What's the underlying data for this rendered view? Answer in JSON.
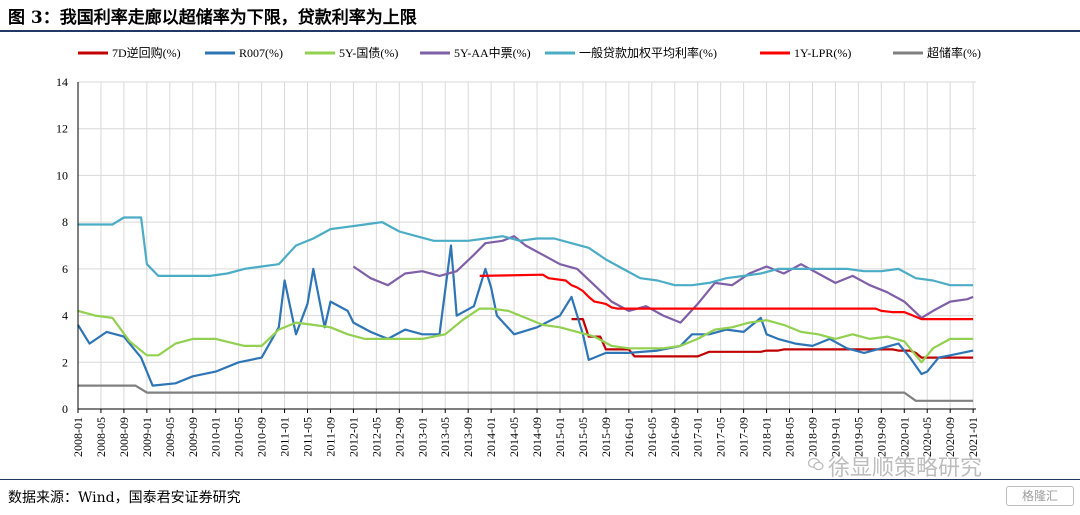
{
  "header": {
    "title": "图 3：我国利率走廊以超储率为下限，贷款利率为上限"
  },
  "footer": {
    "source": "数据来源：Wind，国泰君安证券研究"
  },
  "watermark": {
    "text": "徐显顺策略研究",
    "badge": "格隆汇"
  },
  "chart_data": {
    "type": "line",
    "title": "",
    "xlabel": "",
    "ylabel": "",
    "ylim": [
      0,
      14
    ],
    "yticks": [
      "0",
      "2",
      "4",
      "6",
      "8",
      "10",
      "12",
      "14"
    ],
    "xlim": [
      "2008-01",
      "2021-01"
    ],
    "xticks": [
      "2008-01",
      "2008-05",
      "2008-09",
      "2009-01",
      "2009-05",
      "2009-09",
      "2010-01",
      "2010-05",
      "2010-09",
      "2011-01",
      "2011-05",
      "2011-09",
      "2012-01",
      "2012-05",
      "2012-09",
      "2013-01",
      "2013-05",
      "2013-09",
      "2014-01",
      "2014-05",
      "2014-09",
      "2015-01",
      "2015-05",
      "2015-09",
      "2016-01",
      "2016-05",
      "2016-09",
      "2017-01",
      "2017-05",
      "2017-09",
      "2018-01",
      "2018-05",
      "2018-09",
      "2019-01",
      "2019-05",
      "2019-09",
      "2020-01",
      "2020-05",
      "2020-09",
      "2021-01"
    ],
    "grid": true,
    "legend_position": "top",
    "series": [
      {
        "name": "7D逆回购(%)",
        "color": "#c00000",
        "x": [
          "2008-01",
          "2015-02",
          "2015-03",
          "2015-05",
          "2015-06",
          "2015-08",
          "2015-09",
          "2016-01",
          "2016-02",
          "2017-01",
          "2017-02",
          "2017-03",
          "2017-04",
          "2017-12",
          "2018-01",
          "2018-03",
          "2018-04",
          "2019-11",
          "2019-12",
          "2020-02",
          "2020-03",
          "2020-04",
          "2020-05",
          "2021-01"
        ],
        "values": [
          null,
          null,
          3.85,
          3.85,
          3.1,
          3.1,
          2.55,
          2.55,
          2.25,
          2.25,
          2.35,
          2.45,
          2.45,
          2.45,
          2.5,
          2.5,
          2.55,
          2.55,
          2.5,
          2.5,
          2.4,
          2.2,
          2.2,
          2.2
        ]
      },
      {
        "name": "R007(%)",
        "color": "#2e75b6",
        "x": [
          "2008-01",
          "2008-03",
          "2008-06",
          "2008-09",
          "2008-12",
          "2009-02",
          "2009-06",
          "2009-09",
          "2010-01",
          "2010-05",
          "2010-09",
          "2010-12",
          "2011-01",
          "2011-03",
          "2011-05",
          "2011-06",
          "2011-08",
          "2011-09",
          "2011-12",
          "2012-01",
          "2012-04",
          "2012-07",
          "2012-10",
          "2013-01",
          "2013-04",
          "2013-06",
          "2013-07",
          "2013-10",
          "2013-12",
          "2014-01",
          "2014-02",
          "2014-05",
          "2014-09",
          "2015-01",
          "2015-03",
          "2015-05",
          "2015-06",
          "2015-09",
          "2016-01",
          "2016-06",
          "2016-10",
          "2016-12",
          "2017-03",
          "2017-06",
          "2017-09",
          "2017-12",
          "2018-01",
          "2018-03",
          "2018-06",
          "2018-09",
          "2018-12",
          "2019-03",
          "2019-06",
          "2019-09",
          "2019-12",
          "2020-02",
          "2020-04",
          "2020-05",
          "2020-07",
          "2020-09",
          "2020-11",
          "2021-01"
        ],
        "values": [
          3.6,
          2.8,
          3.3,
          3.1,
          2.2,
          1.0,
          1.1,
          1.4,
          1.6,
          2.0,
          2.2,
          3.5,
          5.5,
          3.2,
          4.5,
          6.0,
          3.5,
          4.6,
          4.2,
          3.7,
          3.3,
          3.0,
          3.4,
          3.2,
          3.2,
          7.0,
          4.0,
          4.4,
          6.0,
          5.2,
          4.0,
          3.2,
          3.5,
          4.0,
          4.8,
          3.2,
          2.1,
          2.4,
          2.4,
          2.5,
          2.7,
          3.2,
          3.2,
          3.4,
          3.3,
          3.9,
          3.2,
          3.0,
          2.8,
          2.7,
          3.0,
          2.6,
          2.4,
          2.6,
          2.8,
          2.2,
          1.5,
          1.6,
          2.2,
          2.3,
          2.4,
          2.5
        ]
      },
      {
        "name": "5Y-国债(%)",
        "color": "#92d050",
        "x": [
          "2008-01",
          "2008-04",
          "2008-07",
          "2008-10",
          "2009-01",
          "2009-03",
          "2009-06",
          "2009-09",
          "2010-01",
          "2010-06",
          "2010-09",
          "2010-12",
          "2011-03",
          "2011-06",
          "2011-09",
          "2011-12",
          "2012-03",
          "2012-06",
          "2012-09",
          "2013-01",
          "2013-05",
          "2013-08",
          "2013-11",
          "2014-01",
          "2014-04",
          "2014-07",
          "2014-10",
          "2015-01",
          "2015-04",
          "2015-07",
          "2015-10",
          "2016-01",
          "2016-04",
          "2016-07",
          "2016-10",
          "2017-01",
          "2017-04",
          "2017-07",
          "2017-10",
          "2018-01",
          "2018-04",
          "2018-07",
          "2018-10",
          "2019-01",
          "2019-04",
          "2019-07",
          "2019-10",
          "2020-01",
          "2020-04",
          "2020-06",
          "2020-09",
          "2020-12",
          "2021-01"
        ],
        "values": [
          4.2,
          4.0,
          3.9,
          2.9,
          2.3,
          2.3,
          2.8,
          3.0,
          3.0,
          2.7,
          2.7,
          3.4,
          3.7,
          3.6,
          3.5,
          3.2,
          3.0,
          3.0,
          3.0,
          3.0,
          3.2,
          3.8,
          4.3,
          4.3,
          4.2,
          3.9,
          3.6,
          3.5,
          3.3,
          3.1,
          2.7,
          2.6,
          2.6,
          2.6,
          2.7,
          3.0,
          3.4,
          3.5,
          3.7,
          3.8,
          3.6,
          3.3,
          3.2,
          3.0,
          3.2,
          3.0,
          3.1,
          2.9,
          2.0,
          2.6,
          3.0,
          3.0,
          3.0
        ]
      },
      {
        "name": "5Y-AA中票(%)",
        "color": "#7f5fa8",
        "x": [
          "2012-01",
          "2012-04",
          "2012-07",
          "2012-10",
          "2013-01",
          "2013-04",
          "2013-07",
          "2013-10",
          "2013-12",
          "2014-03",
          "2014-05",
          "2014-07",
          "2014-10",
          "2015-01",
          "2015-04",
          "2015-07",
          "2015-10",
          "2016-01",
          "2016-04",
          "2016-07",
          "2016-10",
          "2017-01",
          "2017-04",
          "2017-07",
          "2017-10",
          "2018-01",
          "2018-04",
          "2018-07",
          "2018-10",
          "2019-01",
          "2019-04",
          "2019-07",
          "2019-10",
          "2020-01",
          "2020-04",
          "2020-06",
          "2020-09",
          "2020-12",
          "2021-01"
        ],
        "values": [
          6.1,
          5.6,
          5.3,
          5.8,
          5.9,
          5.7,
          5.9,
          6.6,
          7.1,
          7.2,
          7.4,
          7.0,
          6.6,
          6.2,
          6.0,
          5.3,
          4.6,
          4.2,
          4.4,
          4.0,
          3.7,
          4.5,
          5.4,
          5.3,
          5.8,
          6.1,
          5.8,
          6.2,
          5.8,
          5.4,
          5.7,
          5.3,
          5.0,
          4.6,
          3.9,
          4.2,
          4.6,
          4.7,
          4.8
        ]
      },
      {
        "name": "一般贷款加权平均利率(%)",
        "color": "#4bacc6",
        "x": [
          "2008-01",
          "2008-07",
          "2008-09",
          "2008-12",
          "2009-01",
          "2009-03",
          "2009-06",
          "2009-09",
          "2009-12",
          "2010-03",
          "2010-06",
          "2010-09",
          "2010-12",
          "2011-03",
          "2011-06",
          "2011-09",
          "2011-12",
          "2012-03",
          "2012-06",
          "2012-09",
          "2012-12",
          "2013-03",
          "2013-06",
          "2013-09",
          "2013-12",
          "2014-03",
          "2014-06",
          "2014-09",
          "2014-12",
          "2015-03",
          "2015-06",
          "2015-09",
          "2015-12",
          "2016-03",
          "2016-06",
          "2016-09",
          "2016-12",
          "2017-03",
          "2017-06",
          "2017-09",
          "2017-12",
          "2018-03",
          "2018-06",
          "2018-09",
          "2018-12",
          "2019-03",
          "2019-06",
          "2019-09",
          "2019-12",
          "2020-03",
          "2020-06",
          "2020-09",
          "2020-12",
          "2021-01"
        ],
        "values": [
          7.9,
          7.9,
          8.2,
          8.2,
          6.2,
          5.7,
          5.7,
          5.7,
          5.7,
          5.8,
          6.0,
          6.1,
          6.2,
          7.0,
          7.3,
          7.7,
          7.8,
          7.9,
          8.0,
          7.6,
          7.4,
          7.2,
          7.2,
          7.2,
          7.3,
          7.4,
          7.2,
          7.3,
          7.3,
          7.1,
          6.9,
          6.4,
          6.0,
          5.6,
          5.5,
          5.3,
          5.3,
          5.4,
          5.6,
          5.7,
          5.8,
          6.0,
          6.0,
          6.0,
          6.0,
          6.0,
          5.9,
          5.9,
          6.0,
          5.6,
          5.5,
          5.3,
          5.3,
          5.3
        ]
      },
      {
        "name": "1Y-LPR(%)",
        "color": "#ff0000",
        "x": [
          "2008-01",
          "2013-10",
          "2013-11",
          "2014-10",
          "2014-11",
          "2015-02",
          "2015-03",
          "2015-04",
          "2015-05",
          "2015-06",
          "2015-07",
          "2015-08",
          "2015-09",
          "2015-10",
          "2015-11",
          "2019-08",
          "2019-09",
          "2019-11",
          "2020-01",
          "2020-02",
          "2020-04",
          "2021-01"
        ],
        "values": [
          null,
          null,
          5.7,
          5.75,
          5.6,
          5.5,
          5.3,
          5.2,
          5.05,
          4.8,
          4.6,
          4.55,
          4.5,
          4.35,
          4.3,
          4.3,
          4.2,
          4.15,
          4.15,
          4.05,
          3.85,
          3.85
        ]
      },
      {
        "name": "超储率(%)",
        "color": "#808080",
        "x": [
          "2008-01",
          "2008-11",
          "2009-01",
          "2020-01",
          "2020-03",
          "2021-01"
        ],
        "values": [
          1.0,
          1.0,
          0.7,
          0.7,
          0.35,
          0.35
        ]
      }
    ]
  }
}
